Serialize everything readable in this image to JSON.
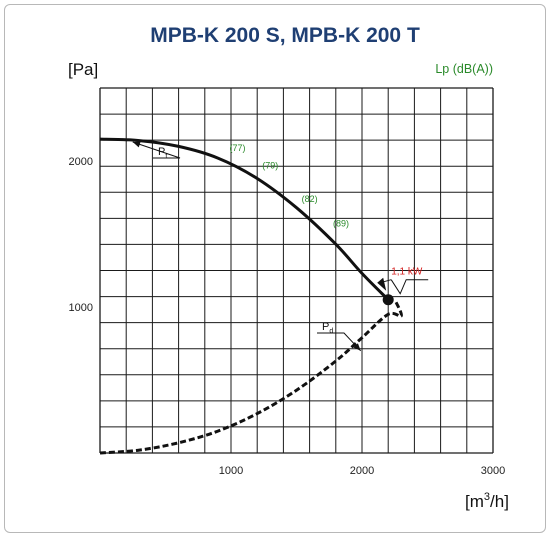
{
  "chart_data": {
    "type": "line",
    "title": "MPB-K 200 S, MPB-K 200 T",
    "ylabel": "[Pa]",
    "xlabel_parts": {
      "base": "[m",
      "sup": "3",
      "rest": "/h]"
    },
    "sound_label": "Lp (dB(A))",
    "xlim": [
      0,
      3000
    ],
    "ylim": [
      0,
      2500
    ],
    "grid": true,
    "x_ticks": [
      1000,
      2000,
      3000
    ],
    "y_ticks": [
      1000,
      2000
    ],
    "x_tick_labels": [
      "1000",
      "2000",
      "3000"
    ],
    "y_tick_labels": [
      "1000",
      "2000"
    ],
    "series": [
      {
        "label": "P",
        "sub": "t",
        "style": "solid",
        "x": [
          0,
          300,
          600,
          900,
          1200,
          1500,
          1800,
          2000,
          2200
        ],
        "y": [
          2150,
          2140,
          2100,
          2020,
          1880,
          1680,
          1430,
          1230,
          1050
        ]
      },
      {
        "label": "P",
        "sub": "d",
        "style": "dashed",
        "x": [
          0,
          300,
          600,
          900,
          1200,
          1500,
          1800,
          2000,
          2200,
          2300,
          2250
        ],
        "y": [
          0,
          20,
          70,
          150,
          270,
          430,
          630,
          790,
          950,
          940,
          1050
        ]
      }
    ],
    "sound_levels": [
      {
        "x": 1050,
        "y": 2070,
        "text": "(77)"
      },
      {
        "x": 1300,
        "y": 1950,
        "text": "(79)"
      },
      {
        "x": 1600,
        "y": 1720,
        "text": "(82)"
      },
      {
        "x": 1840,
        "y": 1550,
        "text": "(89)"
      }
    ],
    "operating_point": {
      "x": 2200,
      "y": 1050,
      "text": "1,1 kW"
    },
    "colors": {
      "title": "#1f3f73",
      "sound": "#2a8a2a",
      "power": "#d42020",
      "curve": "#111111",
      "grid": "#1a1a1a"
    }
  }
}
